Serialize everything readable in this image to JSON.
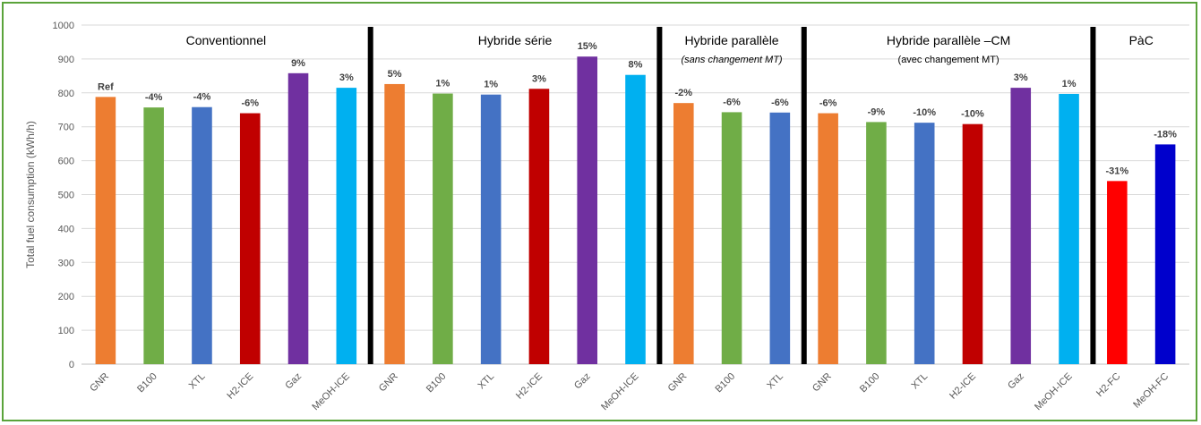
{
  "chart_data": {
    "type": "bar",
    "ylabel": "Total fuel consumption (kWh/h)",
    "ylim": [
      0,
      1000
    ],
    "yticks": [
      0,
      100,
      200,
      300,
      400,
      500,
      600,
      700,
      800,
      900,
      1000
    ],
    "grid": true,
    "groups": [
      {
        "title": "Conventionnel",
        "subtitle": "",
        "categories": [
          "GNR",
          "B100",
          "XTL",
          "H2-ICE",
          "Gaz",
          "MeOH-ICE"
        ],
        "values": [
          788,
          757,
          758,
          740,
          858,
          815
        ],
        "labels": [
          "Ref",
          "-4%",
          "-4%",
          "-6%",
          "9%",
          "3%"
        ],
        "colors": [
          "#ed7d31",
          "#70ad47",
          "#4472c4",
          "#c00000",
          "#7030a0",
          "#00b0f0"
        ]
      },
      {
        "title": "Hybride série",
        "subtitle": "",
        "categories": [
          "GNR",
          "B100",
          "XTL",
          "H2-ICE",
          "Gaz",
          "MeOH-ICE"
        ],
        "values": [
          826,
          798,
          795,
          812,
          907,
          853
        ],
        "labels": [
          "5%",
          "1%",
          "1%",
          "3%",
          "15%",
          "8%"
        ],
        "colors": [
          "#ed7d31",
          "#70ad47",
          "#4472c4",
          "#c00000",
          "#7030a0",
          "#00b0f0"
        ]
      },
      {
        "title": "Hybride parallèle",
        "subtitle": "(sans changement MT)",
        "categories": [
          "GNR",
          "B100",
          "XTL"
        ],
        "values": [
          770,
          743,
          742
        ],
        "labels": [
          "-2%",
          "-6%",
          "-6%"
        ],
        "colors": [
          "#ed7d31",
          "#70ad47",
          "#4472c4"
        ]
      },
      {
        "title": "Hybride parallèle –CM",
        "subtitle": "(avec changement MT)",
        "categories": [
          "GNR",
          "B100",
          "XTL",
          "H2-ICE",
          "Gaz",
          "MeOH-ICE"
        ],
        "values": [
          740,
          714,
          712,
          708,
          815,
          797
        ],
        "labels": [
          "-6%",
          "-9%",
          "-10%",
          "-10%",
          "3%",
          "1%"
        ],
        "colors": [
          "#ed7d31",
          "#70ad47",
          "#4472c4",
          "#c00000",
          "#7030a0",
          "#00b0f0"
        ]
      },
      {
        "title": "PàC",
        "subtitle": "",
        "categories": [
          "H2-FC",
          "MeOH-FC"
        ],
        "values": [
          540,
          648
        ],
        "labels": [
          "-31%",
          "-18%"
        ],
        "colors": [
          "#ff0000",
          "#0000cc"
        ]
      }
    ]
  }
}
